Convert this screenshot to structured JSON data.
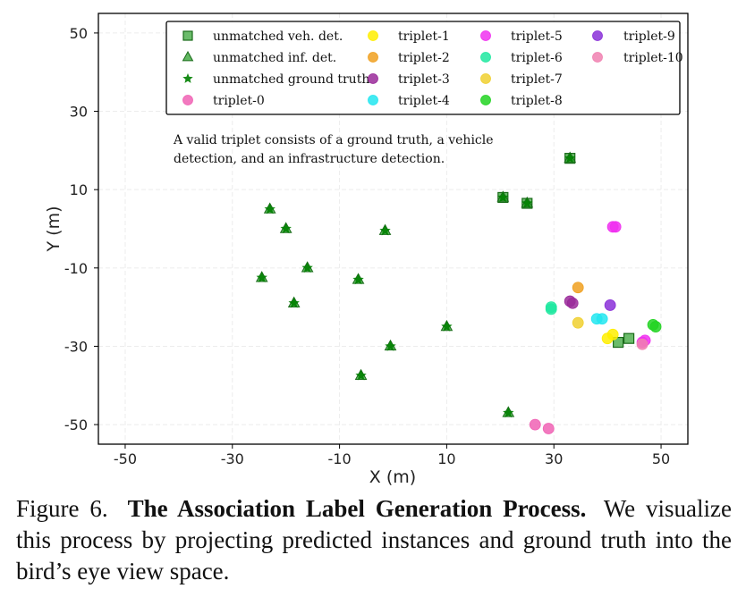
{
  "chart_data": {
    "type": "scatter",
    "xlabel": "X (m)",
    "ylabel": "Y (m)",
    "xlim": [
      -55,
      55
    ],
    "ylim": [
      -55,
      55
    ],
    "xticks": [
      -50,
      -30,
      -10,
      10,
      30,
      50
    ],
    "yticks": [
      50,
      30,
      10,
      -10,
      -30,
      -50
    ],
    "grid": true,
    "legend_position": "top",
    "annotation": [
      "A valid triplet consists of a ground truth, a vehicle",
      "detection, and an infrastructure detection."
    ],
    "series": [
      {
        "name": "unmatched veh. det.",
        "marker": "square",
        "color": "#2ca02c",
        "points": [
          [
            33,
            18
          ],
          [
            25,
            6.5
          ],
          [
            20.5,
            8
          ],
          [
            44,
            -28
          ],
          [
            42,
            -29
          ]
        ]
      },
      {
        "name": "unmatched inf. det.",
        "marker": "triangle",
        "color": "#2ca02c",
        "points": [
          [
            33,
            18
          ],
          [
            25,
            6.5
          ],
          [
            20.5,
            8
          ],
          [
            -23,
            5
          ],
          [
            -20,
            0
          ],
          [
            -1.5,
            -0.5
          ],
          [
            -16,
            -10
          ],
          [
            -24.5,
            -12.5
          ],
          [
            -6.5,
            -13
          ],
          [
            -18.5,
            -19
          ],
          [
            10,
            -25
          ],
          [
            -0.5,
            -30
          ],
          [
            -6,
            -37.5
          ],
          [
            21.5,
            -47
          ]
        ]
      },
      {
        "name": "unmatched ground truth",
        "marker": "star",
        "color": "#008000",
        "points": [
          [
            33,
            18
          ],
          [
            25,
            6.5
          ],
          [
            20.5,
            8
          ],
          [
            -23,
            5
          ],
          [
            -20,
            0
          ],
          [
            -1.5,
            -0.5
          ],
          [
            -16,
            -10
          ],
          [
            -24.5,
            -12.5
          ],
          [
            -6.5,
            -13
          ],
          [
            -18.5,
            -19
          ],
          [
            10,
            -25
          ],
          [
            -0.5,
            -30
          ],
          [
            -6,
            -37.5
          ],
          [
            21.5,
            -47
          ]
        ]
      },
      {
        "name": "triplet-0",
        "marker": "circle",
        "color": "#f062b4",
        "points": [
          [
            26.5,
            -50
          ],
          [
            29,
            -51
          ]
        ]
      },
      {
        "name": "triplet-1",
        "marker": "circle",
        "color": "#ffee00",
        "points": [
          [
            41,
            -27
          ],
          [
            40,
            -28
          ]
        ]
      },
      {
        "name": "triplet-2",
        "marker": "circle",
        "color": "#f0a020",
        "points": [
          [
            34.5,
            -15
          ]
        ]
      },
      {
        "name": "triplet-3",
        "marker": "circle",
        "color": "#9a2a9a",
        "points": [
          [
            33,
            -18.5
          ],
          [
            33.5,
            -19
          ]
        ]
      },
      {
        "name": "triplet-4",
        "marker": "circle",
        "color": "#22e6f0",
        "points": [
          [
            38,
            -23
          ],
          [
            39,
            -23
          ]
        ]
      },
      {
        "name": "triplet-5",
        "marker": "circle",
        "color": "#f030f0",
        "points": [
          [
            41,
            0.5
          ],
          [
            41.5,
            0.5
          ],
          [
            46.5,
            -29
          ],
          [
            47,
            -28.5
          ]
        ]
      },
      {
        "name": "triplet-6",
        "marker": "circle",
        "color": "#20e8a0",
        "points": [
          [
            29.5,
            -20.5
          ],
          [
            29.5,
            -20
          ]
        ]
      },
      {
        "name": "triplet-7",
        "marker": "circle",
        "color": "#f0d030",
        "points": [
          [
            34.5,
            -24
          ]
        ]
      },
      {
        "name": "triplet-8",
        "marker": "circle",
        "color": "#22d322",
        "points": [
          [
            48.5,
            -24.5
          ],
          [
            49,
            -25
          ]
        ]
      },
      {
        "name": "triplet-9",
        "marker": "circle",
        "color": "#8a30d8",
        "points": [
          [
            40.5,
            -19.5
          ]
        ]
      },
      {
        "name": "triplet-10",
        "marker": "circle",
        "color": "#f080b0",
        "points": [
          [
            46.5,
            -29.5
          ]
        ]
      }
    ]
  },
  "caption": {
    "label": "Figure 6.",
    "title": "The Association Label Generation Process.",
    "text": "We visualize this process by projecting predicted instances and ground truth into the bird’s eye view space."
  }
}
